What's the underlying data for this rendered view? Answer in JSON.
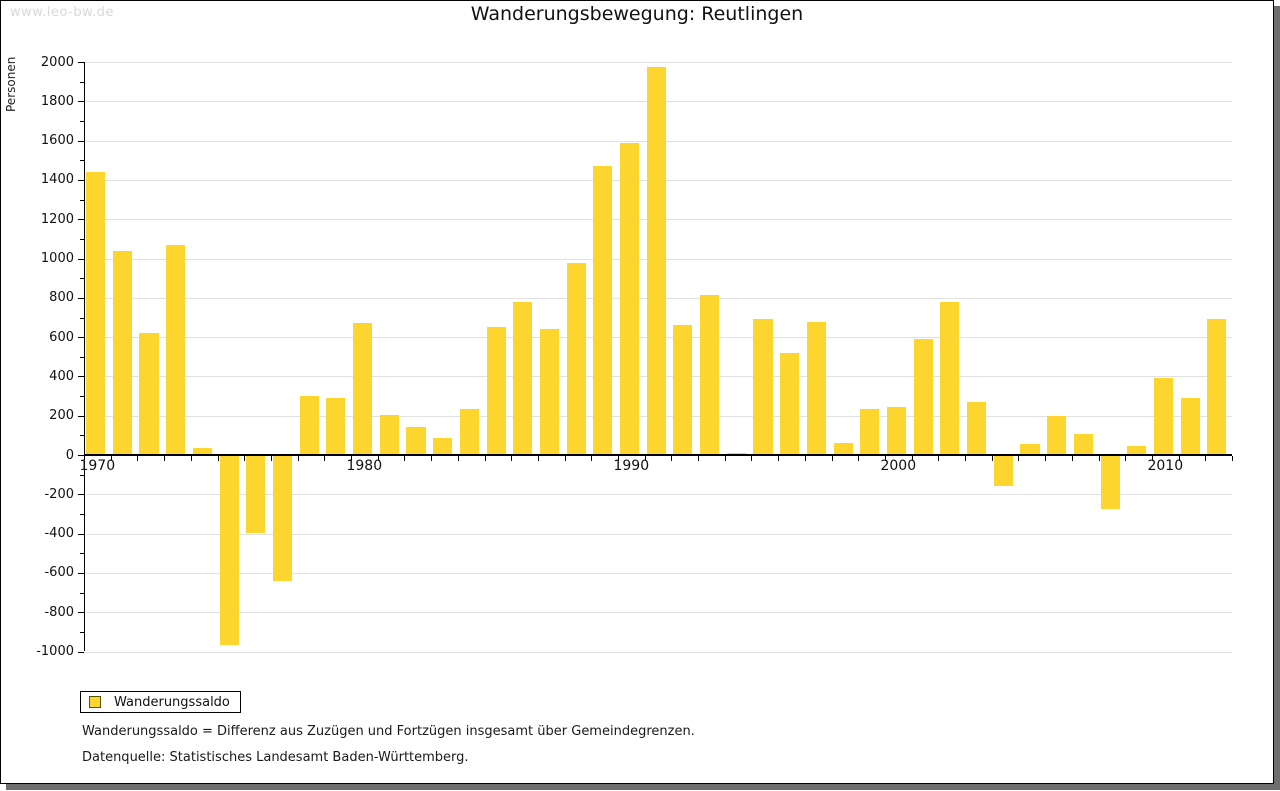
{
  "watermark": "www.leo-bw.de",
  "header": {
    "title": "Wanderungsbewegung: Reutlingen"
  },
  "y_axis": {
    "label": "Personen"
  },
  "legend": {
    "label": "Wanderungssaldo"
  },
  "footnotes": {
    "definition": "Wanderungssaldo = Differenz aus Zuzügen und Fortzügen insgesamt über Gemeindegrenzen.",
    "source": "Datenquelle: Statistisches Landesamt Baden-Württemberg."
  },
  "colors": {
    "bar": "#FCD62E",
    "grid": "#E1E1E1",
    "axis": "#000000",
    "watermark": "#D8D8D8",
    "shadow": "#6E6E6E"
  },
  "chart_data": {
    "type": "bar",
    "title": "Wanderungsbewegung: Reutlingen",
    "ylabel": "Personen",
    "legend": "Wanderungssaldo",
    "x": [
      1970,
      1971,
      1972,
      1973,
      1974,
      1975,
      1976,
      1977,
      1978,
      1979,
      1980,
      1981,
      1982,
      1983,
      1984,
      1985,
      1986,
      1987,
      1988,
      1989,
      1990,
      1991,
      1992,
      1993,
      1994,
      1995,
      1996,
      1997,
      1998,
      1999,
      2000,
      2001,
      2002,
      2003,
      2004,
      2005,
      2006,
      2007,
      2008,
      2009,
      2010,
      2011,
      2012
    ],
    "values": [
      1440,
      1040,
      620,
      1070,
      35,
      -965,
      -395,
      -640,
      300,
      290,
      670,
      205,
      145,
      85,
      235,
      650,
      780,
      640,
      975,
      1470,
      1590,
      1975,
      660,
      815,
      10,
      695,
      520,
      675,
      60,
      235,
      245,
      590,
      780,
      270,
      -160,
      55,
      200,
      105,
      -275,
      45,
      390,
      290,
      690
    ],
    "ylim": [
      -1000,
      2000
    ],
    "ytick_step": 200,
    "ytick_minor_step": 100,
    "x_major_labels": [
      1970,
      1980,
      1990,
      2000,
      2010
    ],
    "grid": true,
    "bar_color": "#FCD62E",
    "legend_position": "bottom-left"
  }
}
